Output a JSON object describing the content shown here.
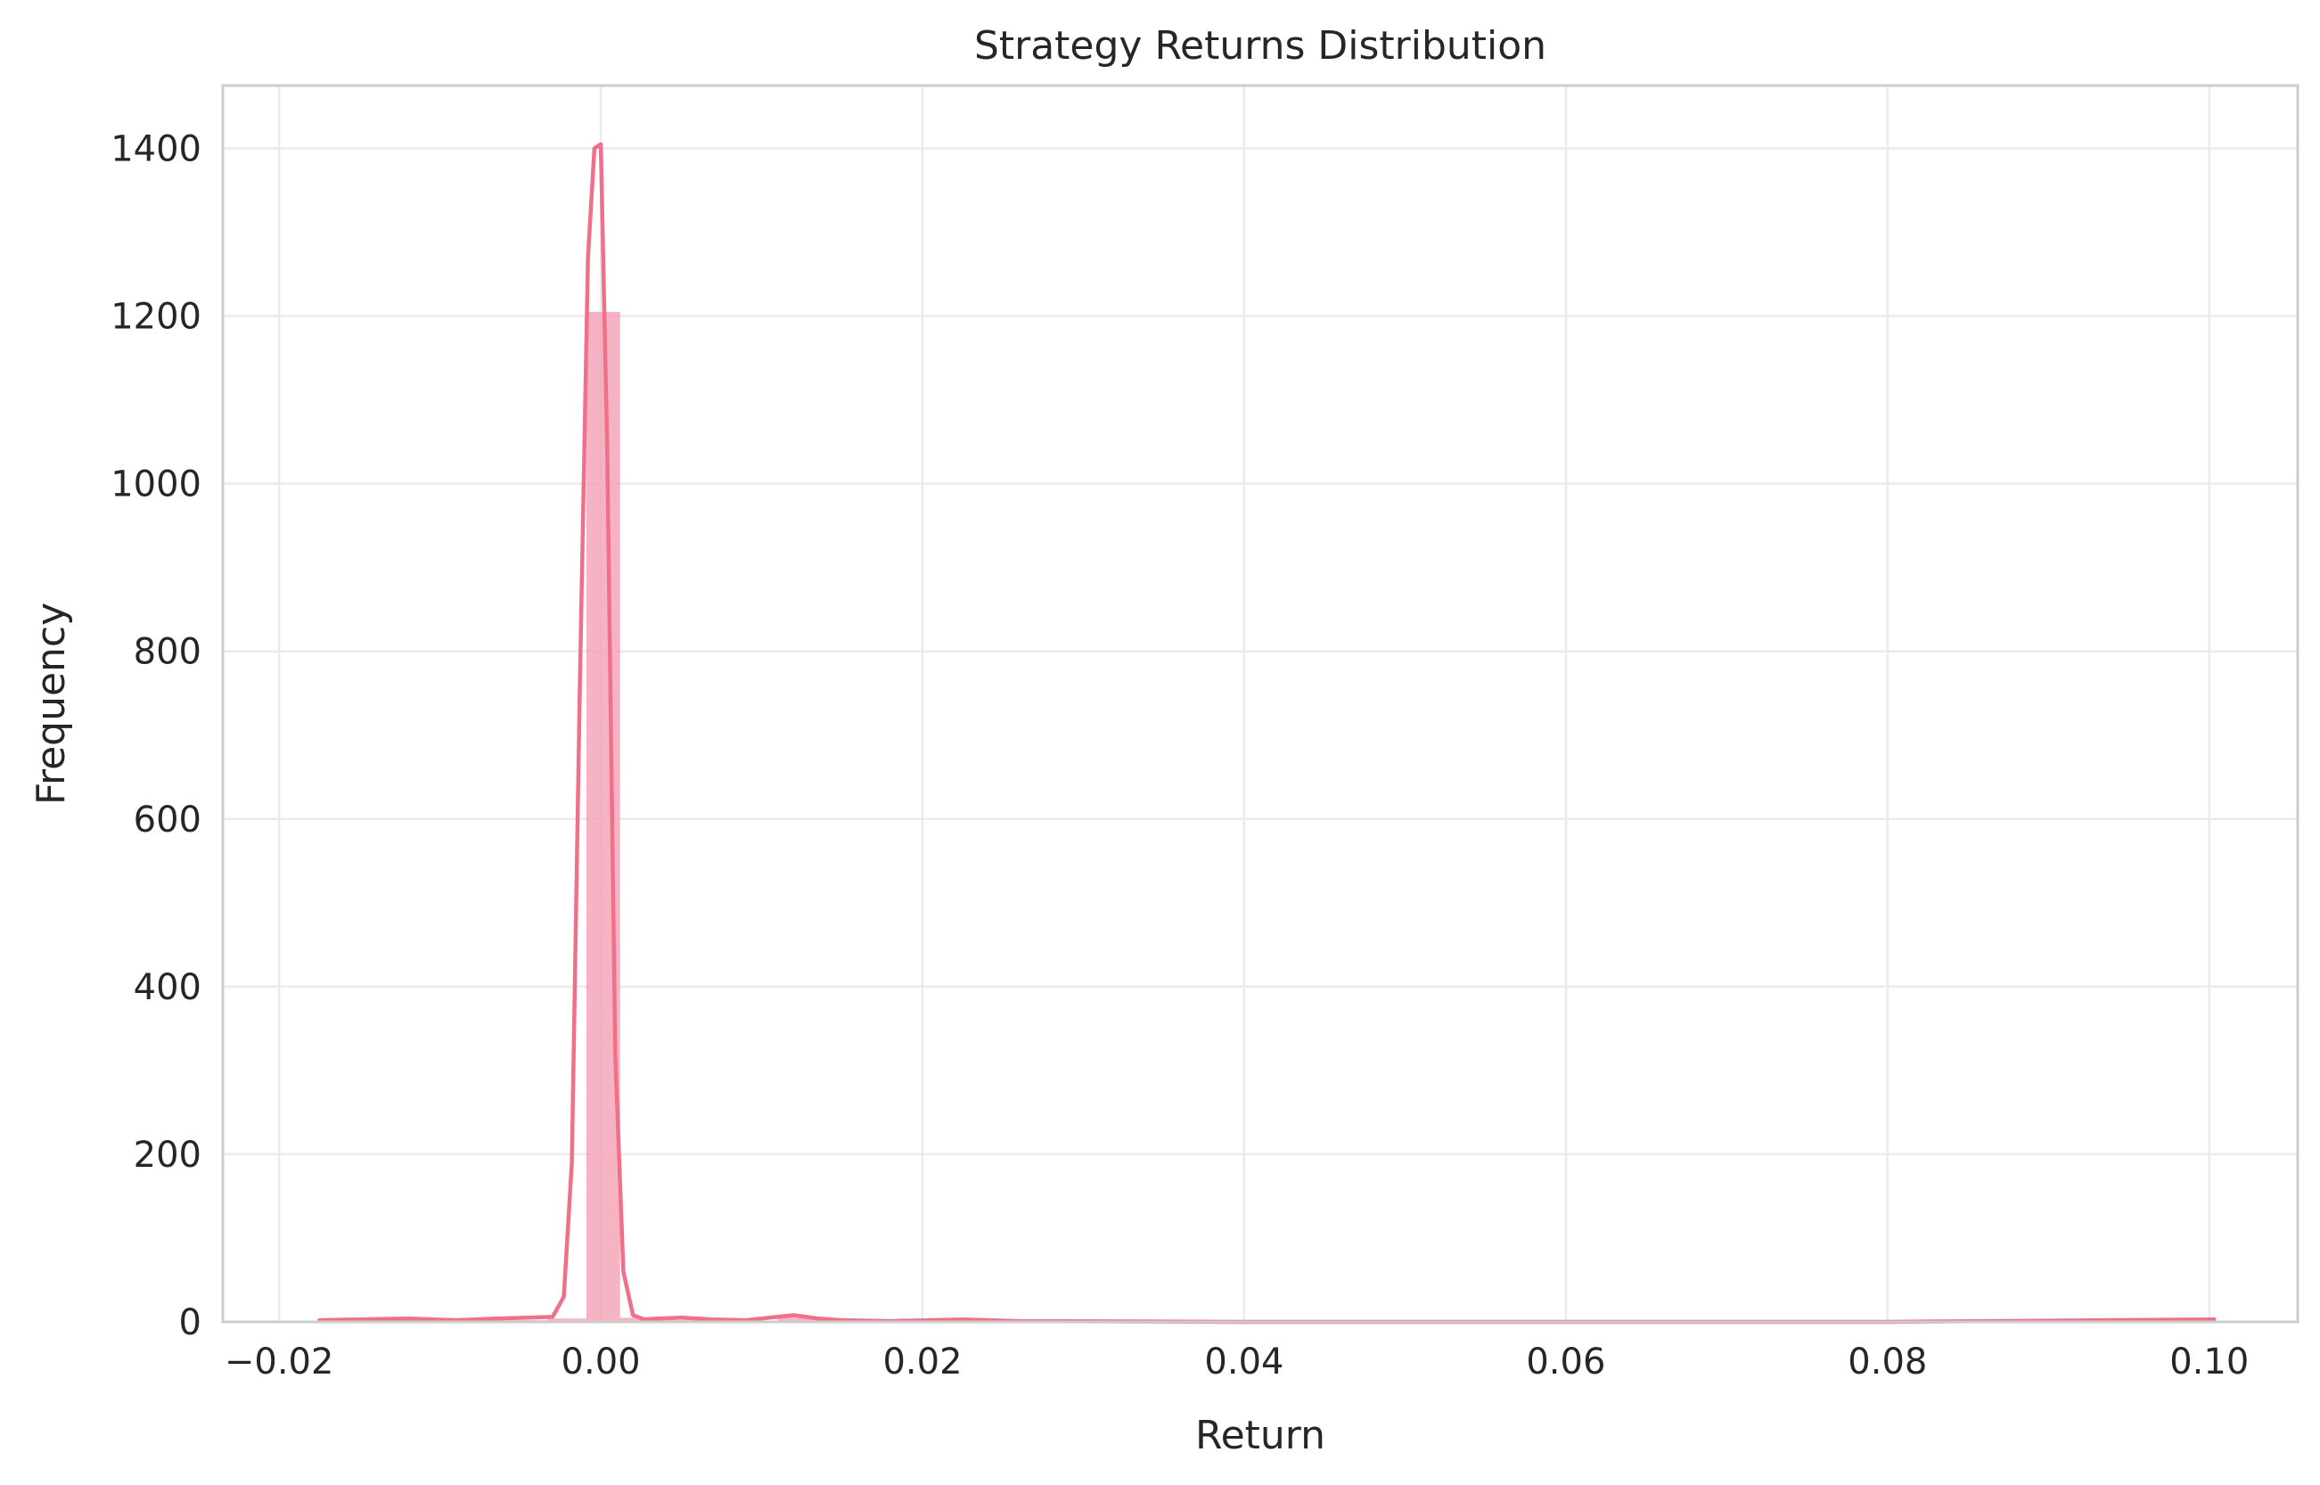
{
  "chart_data": {
    "type": "bar",
    "title": "Strategy Returns Distribution",
    "xlabel": "Return",
    "ylabel": "Frequency",
    "xlim": [
      -0.0235,
      0.1055
    ],
    "ylim": [
      0,
      1475
    ],
    "x_ticks": [
      -0.02,
      0.0,
      0.02,
      0.04,
      0.06,
      0.08,
      0.1
    ],
    "x_tick_labels": [
      "−0.02",
      "0.00",
      "0.02",
      "0.04",
      "0.06",
      "0.08",
      "0.10"
    ],
    "y_ticks": [
      0,
      200,
      400,
      600,
      800,
      1000,
      1200,
      1400
    ],
    "y_tick_labels": [
      "0",
      "200",
      "400",
      "600",
      "800",
      "1000",
      "1200",
      "1400"
    ],
    "grid": true,
    "legend": "none",
    "series": [
      {
        "kind": "histogram",
        "color": "#f4a0b4",
        "bins": [
          {
            "x0": -0.0175,
            "x1": -0.0151,
            "count": 1
          },
          {
            "x0": -0.0151,
            "x1": -0.0127,
            "count": 2
          },
          {
            "x0": -0.0127,
            "x1": -0.0104,
            "count": 1
          },
          {
            "x0": -0.0104,
            "x1": -0.008,
            "count": 1
          },
          {
            "x0": -0.008,
            "x1": -0.0056,
            "count": 2
          },
          {
            "x0": -0.0056,
            "x1": -0.0033,
            "count": 2
          },
          {
            "x0": -0.0033,
            "x1": -0.0009,
            "count": 4
          },
          {
            "x0": -0.0009,
            "x1": 0.0012,
            "count": 1205
          },
          {
            "x0": 0.0012,
            "x1": 0.0038,
            "count": 5
          },
          {
            "x0": 0.0038,
            "x1": 0.0062,
            "count": 2
          },
          {
            "x0": 0.0062,
            "x1": 0.0086,
            "count": 3
          },
          {
            "x0": 0.011,
            "x1": 0.0134,
            "count": 5
          },
          {
            "x0": 0.0134,
            "x1": 0.0158,
            "count": 1
          },
          {
            "x0": 0.0205,
            "x1": 0.0229,
            "count": 1
          },
          {
            "x0": 0.099,
            "x1": 0.1003,
            "count": 1
          }
        ]
      },
      {
        "kind": "kde",
        "color": "#f0708a",
        "x": [
          -0.0175,
          -0.015,
          -0.012,
          -0.009,
          -0.0065,
          -0.0045,
          -0.003,
          -0.0023,
          -0.0018,
          -0.0013,
          -0.0008,
          -0.0004,
          0.0,
          0.0004,
          0.0009,
          0.0014,
          0.002,
          0.0027,
          0.0035,
          0.005,
          0.007,
          0.009,
          0.0105,
          0.012,
          0.0135,
          0.015,
          0.018,
          0.0225,
          0.026,
          0.04,
          0.06,
          0.08,
          0.1003
        ],
        "y": [
          2,
          3,
          4,
          2,
          4,
          5,
          6,
          30,
          190,
          760,
          1270,
          1400,
          1405,
          1040,
          320,
          60,
          8,
          3,
          4,
          5,
          3,
          2,
          5,
          8,
          4,
          2,
          1,
          3,
          1,
          0,
          0,
          0,
          3
        ]
      }
    ]
  }
}
